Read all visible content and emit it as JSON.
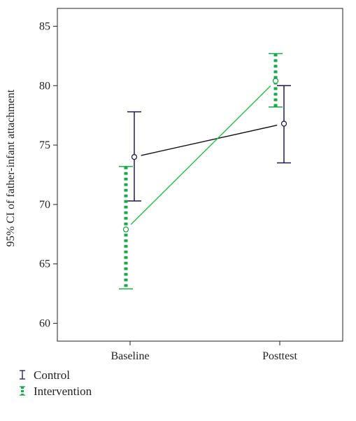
{
  "chart_data": {
    "type": "line",
    "ylabel": "95% CI of father-infant attachment",
    "xlabel": "",
    "categories": [
      "Baseline",
      "Posttest"
    ],
    "ylim": [
      58.5,
      86.5
    ],
    "yticks": [
      60,
      65,
      70,
      75,
      80,
      85
    ],
    "grid": false,
    "legend_position": "bottom-left",
    "series": [
      {
        "name": "Control",
        "color": "#1f1a4a",
        "line_color": "#111111",
        "style": "solid",
        "means": [
          74.0,
          76.8
        ],
        "ci_low": [
          70.3,
          73.5
        ],
        "ci_high": [
          77.8,
          80.0
        ]
      },
      {
        "name": "Intervention",
        "color": "#1aa64b",
        "line_color": "#2db84d",
        "style": "dotted",
        "means": [
          67.9,
          80.4
        ],
        "ci_low": [
          62.9,
          78.2
        ],
        "ci_high": [
          73.2,
          82.7
        ]
      }
    ]
  }
}
